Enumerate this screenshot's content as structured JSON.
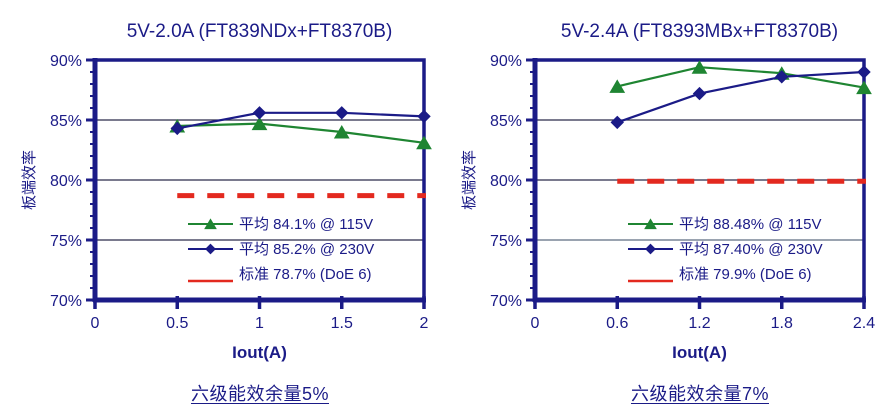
{
  "colors": {
    "navy": "#1b1b87",
    "green": "#1f8532",
    "red": "#e3291f",
    "grid": "#2a2a4a",
    "background": "#ffffff"
  },
  "chart_data": [
    {
      "type": "line",
      "title": "5V-2.0A (FT839NDx+FT8370B)",
      "xlabel": "Iout(A)",
      "ylabel": "板端效率",
      "caption": "六级能效余量5%",
      "xlim": [
        0,
        2
      ],
      "ylim": [
        70,
        90
      ],
      "x_ticks": [
        "0",
        "0.5",
        "1",
        "1.5",
        "2"
      ],
      "x_tick_values": [
        0,
        0.5,
        1,
        1.5,
        2
      ],
      "y_ticks": [
        "90%",
        "85%",
        "80%",
        "75%",
        "70%"
      ],
      "y_tick_values": [
        90,
        85,
        80,
        75,
        70
      ],
      "grid": true,
      "legend_position": "inside-bottom-center",
      "series": [
        {
          "name": "平均 84.1% @ 115V",
          "marker": "triangle",
          "color_key": "green",
          "x": [
            0.5,
            1,
            1.5,
            2
          ],
          "y": [
            84.5,
            84.7,
            84.0,
            83.1
          ]
        },
        {
          "name": "平均 85.2% @ 230V",
          "marker": "diamond",
          "color_key": "navy",
          "x": [
            0.5,
            1,
            1.5,
            2
          ],
          "y": [
            84.3,
            85.6,
            85.6,
            85.3
          ]
        },
        {
          "name": "标准 78.7% (DoE 6)",
          "marker": "none",
          "line_style": "dashed",
          "color_key": "red",
          "constant_y": 78.7,
          "x_range": [
            0.5,
            2
          ]
        }
      ]
    },
    {
      "type": "line",
      "title": "5V-2.4A (FT8393MBx+FT8370B)",
      "xlabel": "Iout(A)",
      "ylabel": "板端效率",
      "caption": "六级能效余量7%",
      "xlim": [
        0,
        2.4
      ],
      "ylim": [
        70,
        90
      ],
      "x_ticks": [
        "0",
        "0.6",
        "1.2",
        "1.8",
        "2.4"
      ],
      "x_tick_values": [
        0,
        0.6,
        1.2,
        1.8,
        2.4
      ],
      "y_ticks": [
        "90%",
        "85%",
        "80%",
        "75%",
        "70%"
      ],
      "y_tick_values": [
        90,
        85,
        80,
        75,
        70
      ],
      "grid": true,
      "grid_color_overrides": {
        "75": "#9aa3b0"
      },
      "legend_position": "inside-bottom-center",
      "series": [
        {
          "name": "平均 88.48% @ 115V",
          "marker": "triangle",
          "color_key": "green",
          "x": [
            0.6,
            1.2,
            1.8,
            2.4
          ],
          "y": [
            87.8,
            89.4,
            88.9,
            87.7
          ]
        },
        {
          "name": "平均 87.40% @ 230V",
          "marker": "diamond",
          "color_key": "navy",
          "x": [
            0.6,
            1.2,
            1.8,
            2.4
          ],
          "y": [
            84.8,
            87.2,
            88.6,
            89.0
          ]
        },
        {
          "name": "标准 79.9% (DoE 6)",
          "marker": "none",
          "line_style": "dashed",
          "color_key": "red",
          "constant_y": 79.9,
          "x_range": [
            0.6,
            2.4
          ]
        }
      ]
    }
  ]
}
